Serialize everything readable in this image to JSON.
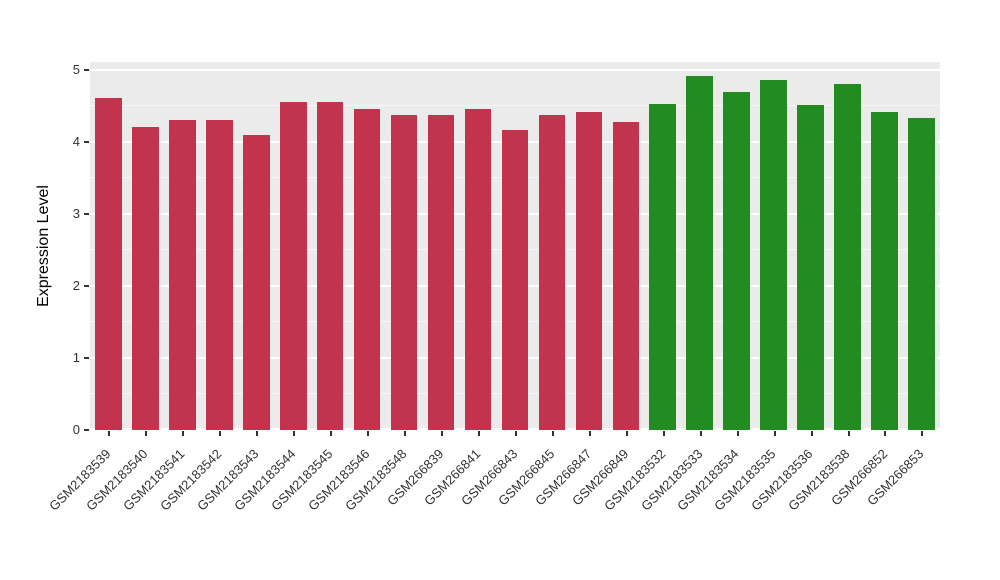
{
  "chart_data": {
    "type": "bar",
    "title": "",
    "xlabel": "",
    "ylabel": "Expression Level",
    "ylim": [
      0,
      5
    ],
    "yticks": [
      0,
      1,
      2,
      3,
      4,
      5
    ],
    "grid": "horizontal major and minor white gridlines on gray panel",
    "legend": "none",
    "panel_background": "#EBEBEB",
    "gridline_color": "#FFFFFF",
    "categories": [
      "GSM2183539",
      "GSM2183540",
      "GSM2183541",
      "GSM2183542",
      "GSM2183543",
      "GSM2183544",
      "GSM2183545",
      "GSM2183546",
      "GSM2183548",
      "GSM266839",
      "GSM266841",
      "GSM266843",
      "GSM266845",
      "GSM266847",
      "GSM266849",
      "GSM2183532",
      "GSM2183533",
      "GSM2183534",
      "GSM2183535",
      "GSM2183536",
      "GSM2183538",
      "GSM266852",
      "GSM266853"
    ],
    "values": [
      4.61,
      4.21,
      4.31,
      4.3,
      4.1,
      4.55,
      4.56,
      4.46,
      4.38,
      4.38,
      4.46,
      4.16,
      4.38,
      4.41,
      4.28,
      4.53,
      4.92,
      4.7,
      4.86,
      4.51,
      4.81,
      4.41,
      4.33
    ],
    "groups": [
      "red",
      "red",
      "red",
      "red",
      "red",
      "red",
      "red",
      "red",
      "red",
      "red",
      "red",
      "red",
      "red",
      "red",
      "red",
      "green",
      "green",
      "green",
      "green",
      "green",
      "green",
      "green",
      "green"
    ],
    "group_colors": {
      "red": "#C2334D",
      "green": "#228B22"
    }
  }
}
